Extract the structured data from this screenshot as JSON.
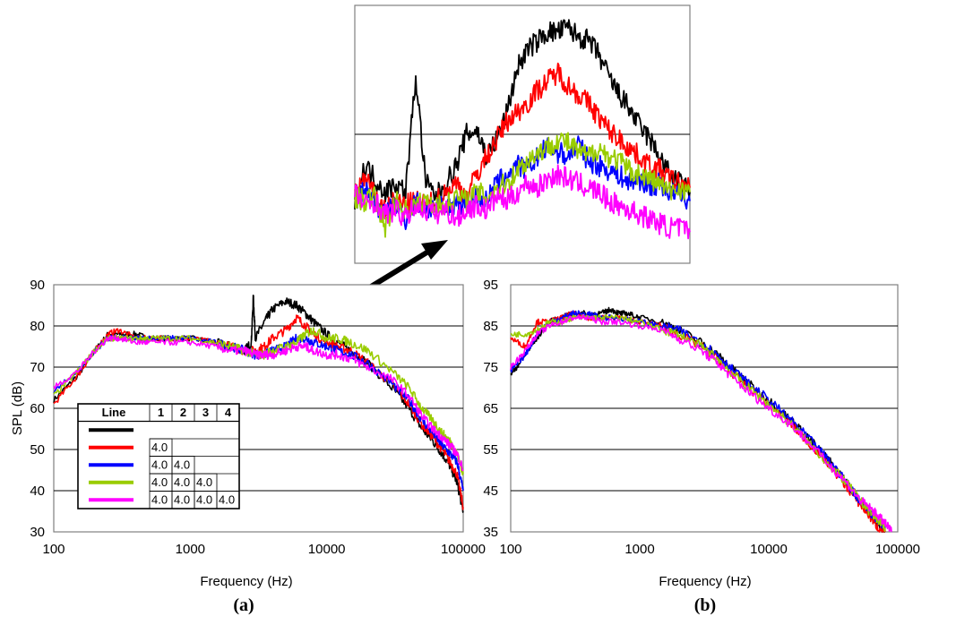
{
  "chart_data": [
    {
      "id": "a",
      "type": "line",
      "panel_label": "(a)",
      "xlabel": "Frequency (Hz)",
      "ylabel": "SPL (dB)",
      "xscale": "log",
      "xlim": [
        100,
        100000
      ],
      "ylim": [
        30,
        90
      ],
      "xticks": [
        "100",
        "1000",
        "10000",
        "100000"
      ],
      "yticks": [
        "30",
        "40",
        "50",
        "60",
        "70",
        "80",
        "90"
      ],
      "grid": "horizontal",
      "series": [
        {
          "color": "#000000",
          "x": [
            100,
            150,
            200,
            250,
            300,
            400,
            500,
            700,
            1000,
            1500,
            2000,
            2500,
            2800,
            2900,
            3000,
            3500,
            4000,
            5000,
            6000,
            7000,
            8000,
            10000,
            12000,
            15000,
            20000,
            30000,
            40000,
            50000,
            60000,
            70000,
            80000,
            90000,
            100000
          ],
          "y": [
            62,
            68,
            74,
            78,
            78,
            78,
            77,
            77,
            77,
            76,
            75,
            74,
            76,
            87,
            77,
            81,
            84,
            86,
            85,
            83,
            81,
            78,
            76,
            74,
            71,
            65,
            60,
            55,
            52,
            49,
            46,
            42,
            35
          ]
        },
        {
          "color": "#ff0000",
          "x": [
            100,
            150,
            200,
            250,
            300,
            400,
            500,
            700,
            1000,
            1500,
            2000,
            2500,
            3000,
            3500,
            4000,
            5000,
            6000,
            7000,
            8000,
            10000,
            12000,
            15000,
            20000,
            30000,
            40000,
            50000,
            60000,
            70000,
            80000,
            90000,
            100000
          ],
          "y": [
            61,
            68,
            74,
            78,
            79,
            77,
            77,
            77,
            77,
            76,
            75,
            74,
            74,
            75,
            77,
            79,
            82,
            80,
            78,
            76,
            75,
            74,
            71,
            66,
            61,
            56,
            53,
            50,
            47,
            44,
            36
          ]
        },
        {
          "color": "#0000ff",
          "x": [
            100,
            150,
            200,
            250,
            300,
            400,
            500,
            700,
            1000,
            1500,
            2000,
            2500,
            3000,
            3500,
            4000,
            5000,
            6000,
            7000,
            8000,
            10000,
            12000,
            15000,
            20000,
            30000,
            40000,
            50000,
            60000,
            70000,
            80000,
            90000,
            100000
          ],
          "y": [
            64,
            69,
            74,
            77,
            77,
            77,
            77,
            77,
            77,
            76,
            75,
            74,
            73,
            73,
            74,
            75,
            77,
            77,
            76,
            75,
            74,
            73,
            71,
            66,
            62,
            57,
            54,
            51,
            49,
            47,
            40
          ]
        },
        {
          "color": "#99cc00",
          "x": [
            100,
            150,
            200,
            250,
            300,
            400,
            500,
            700,
            1000,
            1500,
            2000,
            2500,
            3000,
            3500,
            4000,
            5000,
            6000,
            7000,
            8000,
            10000,
            12000,
            15000,
            20000,
            30000,
            40000,
            50000,
            60000,
            70000,
            80000,
            90000,
            100000
          ],
          "y": [
            63,
            69,
            74,
            77,
            77,
            77,
            77,
            77,
            77,
            76,
            75,
            74,
            73,
            73,
            74,
            75,
            76,
            78,
            79,
            77,
            77,
            76,
            74,
            69,
            65,
            60,
            57,
            54,
            52,
            49,
            44
          ]
        },
        {
          "color": "#ff00ff",
          "x": [
            100,
            150,
            200,
            250,
            300,
            400,
            500,
            700,
            1000,
            1500,
            2000,
            2500,
            3000,
            3500,
            4000,
            5000,
            6000,
            7000,
            8000,
            10000,
            12000,
            15000,
            20000,
            30000,
            40000,
            50000,
            60000,
            70000,
            80000,
            90000,
            100000
          ],
          "y": [
            65,
            69,
            74,
            77,
            77,
            76,
            76,
            76,
            76,
            75,
            74,
            74,
            73,
            73,
            73,
            74,
            75,
            75,
            74,
            73,
            73,
            72,
            70,
            67,
            63,
            58,
            55,
            53,
            51,
            49,
            45
          ]
        }
      ],
      "legend_table": {
        "headers": [
          "Line",
          "1",
          "2",
          "3",
          "4"
        ],
        "rows": [
          {
            "color": "#000000",
            "cells": [
              "",
              "",
              "",
              ""
            ]
          },
          {
            "color": "#ff0000",
            "cells": [
              "4.0",
              "",
              "",
              ""
            ]
          },
          {
            "color": "#0000ff",
            "cells": [
              "4.0",
              "4.0",
              "",
              ""
            ]
          },
          {
            "color": "#99cc00",
            "cells": [
              "4.0",
              "4.0",
              "4.0",
              ""
            ]
          },
          {
            "color": "#ff00ff",
            "cells": [
              "4.0",
              "4.0",
              "4.0",
              "4.0"
            ]
          }
        ]
      }
    },
    {
      "id": "b",
      "type": "line",
      "panel_label": "(b)",
      "xlabel": "Frequency (Hz)",
      "ylabel": "",
      "xscale": "log",
      "xlim": [
        100,
        100000
      ],
      "ylim": [
        35,
        95
      ],
      "xticks": [
        "100",
        "1000",
        "10000",
        "100000"
      ],
      "yticks": [
        "35",
        "45",
        "55",
        "65",
        "75",
        "85",
        "95"
      ],
      "grid": "horizontal",
      "series": [
        {
          "color": "#000000",
          "x": [
            100,
            130,
            160,
            200,
            250,
            300,
            400,
            500,
            600,
            700,
            800,
            1000,
            1500,
            2000,
            3000,
            4000,
            5000,
            7000,
            10000,
            15000,
            20000,
            30000,
            40000,
            50000,
            60000,
            70000,
            80000
          ],
          "y": [
            73,
            78,
            82,
            86,
            87,
            88,
            88,
            88,
            89,
            88,
            88,
            87,
            86,
            84,
            81,
            78,
            75,
            71,
            67,
            62,
            58,
            52,
            47,
            43,
            40,
            37,
            35
          ]
        },
        {
          "color": "#ff0000",
          "x": [
            100,
            130,
            160,
            200,
            250,
            300,
            400,
            500,
            700,
            1000,
            1500,
            2000,
            3000,
            4000,
            5000,
            7000,
            10000,
            15000,
            20000,
            30000,
            40000,
            50000,
            60000,
            70000,
            80000
          ],
          "y": [
            82,
            80,
            86,
            86,
            87,
            88,
            87,
            87,
            87,
            86,
            85,
            83,
            80,
            77,
            74,
            70,
            66,
            61,
            57,
            51,
            46,
            42,
            39,
            36,
            35
          ]
        },
        {
          "color": "#0000ff",
          "x": [
            100,
            130,
            160,
            200,
            250,
            300,
            400,
            500,
            700,
            1000,
            1500,
            2000,
            3000,
            4000,
            5000,
            7000,
            10000,
            15000,
            20000,
            30000,
            40000,
            50000,
            60000,
            70000,
            80000
          ],
          "y": [
            74,
            78,
            83,
            86,
            87,
            88,
            88,
            87,
            87,
            86,
            85,
            84,
            81,
            78,
            75,
            71,
            67,
            62,
            58,
            52,
            47,
            43,
            40,
            38,
            36
          ]
        },
        {
          "color": "#99cc00",
          "x": [
            100,
            130,
            160,
            200,
            250,
            300,
            400,
            500,
            700,
            1000,
            1500,
            2000,
            3000,
            4000,
            5000,
            7000,
            10000,
            15000,
            20000,
            30000,
            40000,
            50000,
            60000,
            70000,
            80000
          ],
          "y": [
            83,
            83,
            84,
            86,
            86,
            87,
            87,
            87,
            87,
            86,
            84,
            83,
            80,
            77,
            74,
            70,
            66,
            61,
            57,
            51,
            47,
            43,
            40,
            38,
            36
          ]
        },
        {
          "color": "#ff00ff",
          "x": [
            100,
            130,
            160,
            200,
            250,
            300,
            400,
            500,
            700,
            1000,
            1500,
            2000,
            3000,
            4000,
            5000,
            7000,
            10000,
            15000,
            20000,
            30000,
            40000,
            50000,
            60000,
            70000,
            80000,
            90000
          ],
          "y": [
            75,
            79,
            83,
            85,
            86,
            87,
            87,
            86,
            86,
            85,
            84,
            82,
            79,
            76,
            73,
            69,
            65,
            61,
            57,
            51,
            47,
            43,
            41,
            39,
            37,
            35
          ]
        }
      ]
    },
    {
      "id": "inset",
      "type": "line",
      "description_only": true,
      "series": [
        {
          "color": "#000000",
          "y": [
            72,
            80,
            77,
            74,
            76,
            74,
            100,
            76,
            73,
            76,
            80,
            87,
            88,
            82,
            86,
            92,
            102,
            106,
            108,
            110,
            110,
            111,
            109,
            108,
            105,
            100,
            96,
            93,
            89,
            86,
            82,
            78,
            76,
            74
          ]
        },
        {
          "color": "#ff0000",
          "y": [
            74,
            77,
            73,
            70,
            72,
            71,
            72,
            71,
            72,
            74,
            76,
            73,
            78,
            82,
            86,
            90,
            92,
            94,
            97,
            99,
            101,
            98,
            96,
            94,
            91,
            88,
            86,
            84,
            82,
            80,
            79,
            77,
            76,
            75
          ]
        },
        {
          "color": "#0000ff",
          "y": [
            72,
            75,
            71,
            69,
            71,
            68,
            72,
            70,
            71,
            70,
            72,
            71,
            73,
            72,
            76,
            78,
            80,
            79,
            82,
            84,
            83,
            82,
            85,
            81,
            80,
            79,
            78,
            76,
            77,
            75,
            76,
            74,
            73,
            72
          ]
        },
        {
          "color": "#99cc00",
          "y": [
            73,
            72,
            73,
            66,
            72,
            70,
            71,
            72,
            71,
            71,
            73,
            72,
            74,
            73,
            75,
            76,
            79,
            81,
            83,
            84,
            86,
            85,
            83,
            82,
            84,
            82,
            81,
            79,
            78,
            77,
            76,
            74,
            75,
            74
          ]
        },
        {
          "color": "#ff00ff",
          "y": [
            74,
            71,
            72,
            69,
            70,
            68,
            71,
            70,
            69,
            70,
            68,
            70,
            71,
            70,
            73,
            72,
            74,
            76,
            75,
            77,
            78,
            77,
            76,
            75,
            74,
            72,
            71,
            70,
            69,
            68,
            67,
            66,
            66,
            65
          ]
        }
      ]
    }
  ]
}
